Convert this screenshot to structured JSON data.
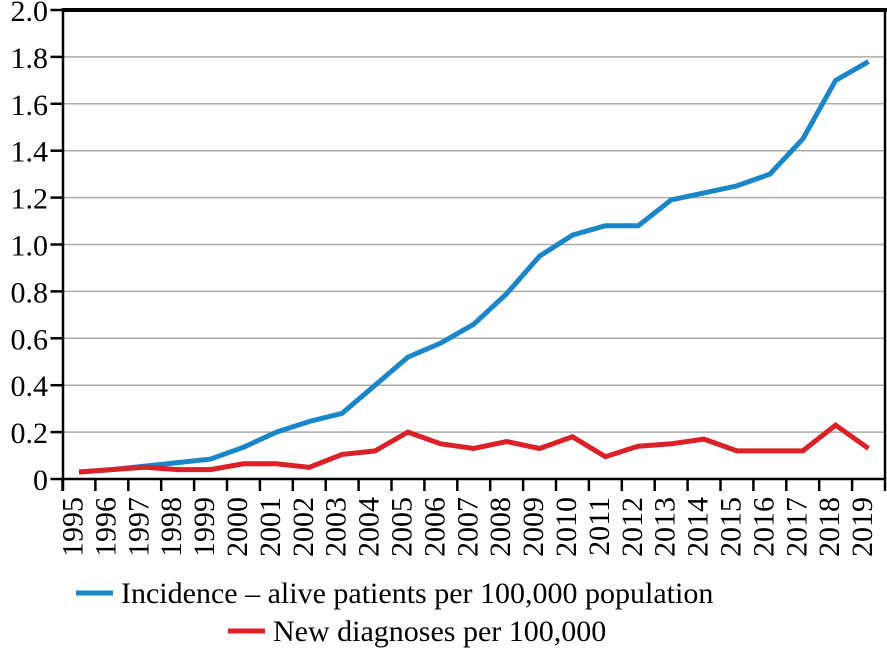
{
  "chart_data": {
    "type": "line",
    "title": "",
    "xlabel": "",
    "ylabel": "",
    "x": [
      1995,
      1996,
      1997,
      1998,
      1999,
      2000,
      2001,
      2002,
      2003,
      2004,
      2005,
      2006,
      2007,
      2008,
      2009,
      2010,
      2011,
      2012,
      2013,
      2014,
      2015,
      2016,
      2017,
      2018,
      2019
    ],
    "series": [
      {
        "key": "incidence",
        "name": "Incidence – alive patients per 100,000 population",
        "color": "#1a86c8",
        "values": [
          0.03,
          0.04,
          0.055,
          0.07,
          0.085,
          0.135,
          0.2,
          0.245,
          0.28,
          0.4,
          0.52,
          0.58,
          0.66,
          0.79,
          0.95,
          1.04,
          1.08,
          1.08,
          1.19,
          1.22,
          1.25,
          1.3,
          1.45,
          1.7,
          1.78
        ]
      },
      {
        "key": "new-diagnoses",
        "name": "New diagnoses per 100,000",
        "color": "#da2128",
        "values": [
          0.03,
          0.04,
          0.05,
          0.04,
          0.04,
          0.065,
          0.065,
          0.05,
          0.105,
          0.12,
          0.2,
          0.15,
          0.13,
          0.16,
          0.13,
          0.18,
          0.095,
          0.14,
          0.15,
          0.17,
          0.12,
          0.12,
          0.12,
          0.23,
          0.13
        ]
      }
    ],
    "ylim": [
      0,
      2.0
    ],
    "ytick_values": [
      0,
      0.2,
      0.4,
      0.6,
      0.8,
      1.0,
      1.2,
      1.4,
      1.6,
      1.8,
      2.0
    ],
    "ytick_labels": [
      "0",
      "0.2",
      "0.4",
      "0.6",
      "0.8",
      "1.0",
      "1.2",
      "1.4",
      "1.6",
      "1.8",
      "2.0"
    ],
    "grid": "horizontal",
    "gridline_color": "#ababab",
    "axis_color": "#000000",
    "legend_position": "bottom"
  },
  "legend": {
    "items": [
      {
        "label": "Incidence – alive patients per 100,000 population",
        "color": "#1a86c8"
      },
      {
        "label": "New diagnoses per 100,000",
        "color": "#da2128"
      }
    ]
  }
}
